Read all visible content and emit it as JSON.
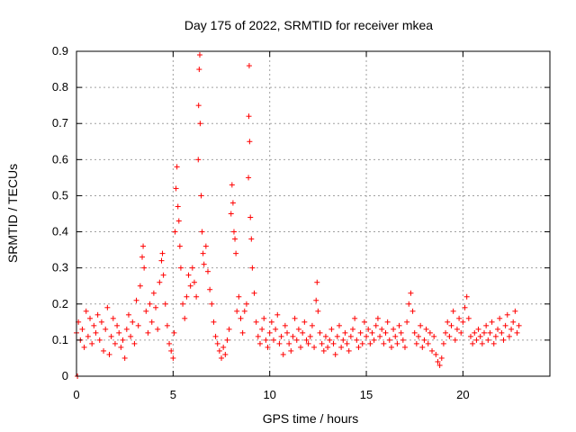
{
  "chart_data": {
    "type": "scatter",
    "title": "Day 175 of 2022, SRMTID for receiver mkea",
    "xlabel": "GPS time / hours",
    "ylabel": "SRMTID / TECUs",
    "xlim": [
      0,
      24.5
    ],
    "ylim": [
      0,
      0.9
    ],
    "xticks": [
      0,
      5,
      10,
      15,
      20
    ],
    "yticks": [
      0,
      0.1,
      0.2,
      0.3,
      0.4,
      0.5,
      0.6,
      0.7,
      0.8,
      0.9
    ],
    "grid": true,
    "marker": "+",
    "color": "#ff0000",
    "series": [
      {
        "name": "mkea",
        "points": [
          [
            0.0,
            0.12
          ],
          [
            0.05,
            0.0
          ],
          [
            0.1,
            0.15
          ],
          [
            0.2,
            0.1
          ],
          [
            0.3,
            0.13
          ],
          [
            0.4,
            0.08
          ],
          [
            0.5,
            0.18
          ],
          [
            0.6,
            0.11
          ],
          [
            0.7,
            0.16
          ],
          [
            0.8,
            0.09
          ],
          [
            0.9,
            0.14
          ],
          [
            1.0,
            0.12
          ],
          [
            1.1,
            0.17
          ],
          [
            1.2,
            0.1
          ],
          [
            1.3,
            0.15
          ],
          [
            1.4,
            0.07
          ],
          [
            1.5,
            0.13
          ],
          [
            1.6,
            0.19
          ],
          [
            1.7,
            0.06
          ],
          [
            1.8,
            0.11
          ],
          [
            1.9,
            0.16
          ],
          [
            2.0,
            0.09
          ],
          [
            2.1,
            0.14
          ],
          [
            2.2,
            0.12
          ],
          [
            2.3,
            0.08
          ],
          [
            2.4,
            0.1
          ],
          [
            2.5,
            0.05
          ],
          [
            2.6,
            0.13
          ],
          [
            2.7,
            0.17
          ],
          [
            2.8,
            0.11
          ],
          [
            2.9,
            0.15
          ],
          [
            3.0,
            0.09
          ],
          [
            3.1,
            0.21
          ],
          [
            3.2,
            0.14
          ],
          [
            3.3,
            0.25
          ],
          [
            3.4,
            0.33
          ],
          [
            3.45,
            0.36
          ],
          [
            3.5,
            0.3
          ],
          [
            3.6,
            0.18
          ],
          [
            3.7,
            0.12
          ],
          [
            3.8,
            0.2
          ],
          [
            3.9,
            0.15
          ],
          [
            4.0,
            0.23
          ],
          [
            4.1,
            0.19
          ],
          [
            4.2,
            0.13
          ],
          [
            4.3,
            0.26
          ],
          [
            4.4,
            0.32
          ],
          [
            4.45,
            0.34
          ],
          [
            4.5,
            0.28
          ],
          [
            4.6,
            0.2
          ],
          [
            4.7,
            0.14
          ],
          [
            4.8,
            0.09
          ],
          [
            4.9,
            0.07
          ],
          [
            5.0,
            0.05
          ],
          [
            5.05,
            0.12
          ],
          [
            5.1,
            0.4
          ],
          [
            5.15,
            0.52
          ],
          [
            5.2,
            0.58
          ],
          [
            5.25,
            0.47
          ],
          [
            5.3,
            0.43
          ],
          [
            5.35,
            0.36
          ],
          [
            5.4,
            0.3
          ],
          [
            5.5,
            0.2
          ],
          [
            5.6,
            0.16
          ],
          [
            5.7,
            0.22
          ],
          [
            5.8,
            0.28
          ],
          [
            5.9,
            0.25
          ],
          [
            6.0,
            0.3
          ],
          [
            6.1,
            0.26
          ],
          [
            6.2,
            0.22
          ],
          [
            6.3,
            0.6
          ],
          [
            6.32,
            0.75
          ],
          [
            6.35,
            0.85
          ],
          [
            6.38,
            0.89
          ],
          [
            6.4,
            0.7
          ],
          [
            6.45,
            0.5
          ],
          [
            6.5,
            0.4
          ],
          [
            6.55,
            0.34
          ],
          [
            6.6,
            0.31
          ],
          [
            6.7,
            0.36
          ],
          [
            6.8,
            0.29
          ],
          [
            6.9,
            0.24
          ],
          [
            7.0,
            0.2
          ],
          [
            7.1,
            0.15
          ],
          [
            7.2,
            0.11
          ],
          [
            7.3,
            0.09
          ],
          [
            7.4,
            0.07
          ],
          [
            7.5,
            0.05
          ],
          [
            7.6,
            0.08
          ],
          [
            7.7,
            0.06
          ],
          [
            7.8,
            0.1
          ],
          [
            7.9,
            0.13
          ],
          [
            8.0,
            0.45
          ],
          [
            8.05,
            0.53
          ],
          [
            8.1,
            0.48
          ],
          [
            8.15,
            0.4
          ],
          [
            8.2,
            0.38
          ],
          [
            8.25,
            0.34
          ],
          [
            8.3,
            0.18
          ],
          [
            8.4,
            0.22
          ],
          [
            8.5,
            0.16
          ],
          [
            8.6,
            0.12
          ],
          [
            8.7,
            0.18
          ],
          [
            8.8,
            0.2
          ],
          [
            8.9,
            0.55
          ],
          [
            8.92,
            0.72
          ],
          [
            8.94,
            0.86
          ],
          [
            8.96,
            0.65
          ],
          [
            9.0,
            0.44
          ],
          [
            9.05,
            0.38
          ],
          [
            9.1,
            0.3
          ],
          [
            9.2,
            0.23
          ],
          [
            9.3,
            0.15
          ],
          [
            9.4,
            0.11
          ],
          [
            9.5,
            0.09
          ],
          [
            9.6,
            0.13
          ],
          [
            9.7,
            0.16
          ],
          [
            9.8,
            0.1
          ],
          [
            9.9,
            0.08
          ],
          [
            10.0,
            0.12
          ],
          [
            10.1,
            0.15
          ],
          [
            10.2,
            0.1
          ],
          [
            10.3,
            0.13
          ],
          [
            10.4,
            0.17
          ],
          [
            10.5,
            0.09
          ],
          [
            10.6,
            0.11
          ],
          [
            10.7,
            0.06
          ],
          [
            10.8,
            0.14
          ],
          [
            10.9,
            0.12
          ],
          [
            11.0,
            0.09
          ],
          [
            11.1,
            0.07
          ],
          [
            11.2,
            0.11
          ],
          [
            11.3,
            0.16
          ],
          [
            11.4,
            0.1
          ],
          [
            11.5,
            0.13
          ],
          [
            11.6,
            0.08
          ],
          [
            11.7,
            0.12
          ],
          [
            11.8,
            0.15
          ],
          [
            11.9,
            0.1
          ],
          [
            12.0,
            0.09
          ],
          [
            12.1,
            0.11
          ],
          [
            12.2,
            0.14
          ],
          [
            12.3,
            0.08
          ],
          [
            12.4,
            0.21
          ],
          [
            12.45,
            0.26
          ],
          [
            12.5,
            0.18
          ],
          [
            12.6,
            0.12
          ],
          [
            12.7,
            0.09
          ],
          [
            12.8,
            0.07
          ],
          [
            12.9,
            0.11
          ],
          [
            13.0,
            0.08
          ],
          [
            13.1,
            0.1
          ],
          [
            13.2,
            0.13
          ],
          [
            13.3,
            0.09
          ],
          [
            13.4,
            0.06
          ],
          [
            13.5,
            0.11
          ],
          [
            13.6,
            0.14
          ],
          [
            13.7,
            0.08
          ],
          [
            13.8,
            0.1
          ],
          [
            13.9,
            0.12
          ],
          [
            14.0,
            0.09
          ],
          [
            14.1,
            0.07
          ],
          [
            14.2,
            0.11
          ],
          [
            14.3,
            0.13
          ],
          [
            14.4,
            0.16
          ],
          [
            14.5,
            0.1
          ],
          [
            14.6,
            0.08
          ],
          [
            14.7,
            0.12
          ],
          [
            14.8,
            0.09
          ],
          [
            14.9,
            0.15
          ],
          [
            15.0,
            0.11
          ],
          [
            15.1,
            0.13
          ],
          [
            15.2,
            0.09
          ],
          [
            15.3,
            0.12
          ],
          [
            15.4,
            0.1
          ],
          [
            15.5,
            0.14
          ],
          [
            15.6,
            0.16
          ],
          [
            15.7,
            0.11
          ],
          [
            15.8,
            0.13
          ],
          [
            15.9,
            0.09
          ],
          [
            16.0,
            0.12
          ],
          [
            16.1,
            0.15
          ],
          [
            16.2,
            0.1
          ],
          [
            16.3,
            0.08
          ],
          [
            16.4,
            0.13
          ],
          [
            16.5,
            0.11
          ],
          [
            16.6,
            0.09
          ],
          [
            16.7,
            0.14
          ],
          [
            16.8,
            0.12
          ],
          [
            16.9,
            0.1
          ],
          [
            17.0,
            0.08
          ],
          [
            17.1,
            0.15
          ],
          [
            17.2,
            0.2
          ],
          [
            17.3,
            0.23
          ],
          [
            17.4,
            0.18
          ],
          [
            17.5,
            0.12
          ],
          [
            17.6,
            0.09
          ],
          [
            17.7,
            0.11
          ],
          [
            17.8,
            0.14
          ],
          [
            17.9,
            0.08
          ],
          [
            18.0,
            0.1
          ],
          [
            18.1,
            0.13
          ],
          [
            18.2,
            0.09
          ],
          [
            18.3,
            0.12
          ],
          [
            18.4,
            0.07
          ],
          [
            18.5,
            0.11
          ],
          [
            18.6,
            0.06
          ],
          [
            18.7,
            0.04
          ],
          [
            18.8,
            0.03
          ],
          [
            18.9,
            0.05
          ],
          [
            19.0,
            0.09
          ],
          [
            19.1,
            0.12
          ],
          [
            19.2,
            0.15
          ],
          [
            19.3,
            0.11
          ],
          [
            19.4,
            0.14
          ],
          [
            19.5,
            0.18
          ],
          [
            19.6,
            0.1
          ],
          [
            19.7,
            0.13
          ],
          [
            19.8,
            0.16
          ],
          [
            19.9,
            0.12
          ],
          [
            20.0,
            0.15
          ],
          [
            20.1,
            0.19
          ],
          [
            20.2,
            0.22
          ],
          [
            20.3,
            0.16
          ],
          [
            20.4,
            0.11
          ],
          [
            20.5,
            0.09
          ],
          [
            20.6,
            0.12
          ],
          [
            20.7,
            0.1
          ],
          [
            20.8,
            0.13
          ],
          [
            20.9,
            0.11
          ],
          [
            21.0,
            0.09
          ],
          [
            21.1,
            0.12
          ],
          [
            21.2,
            0.14
          ],
          [
            21.3,
            0.1
          ],
          [
            21.4,
            0.12
          ],
          [
            21.5,
            0.15
          ],
          [
            21.6,
            0.09
          ],
          [
            21.7,
            0.11
          ],
          [
            21.8,
            0.13
          ],
          [
            21.9,
            0.16
          ],
          [
            22.0,
            0.12
          ],
          [
            22.1,
            0.1
          ],
          [
            22.2,
            0.14
          ],
          [
            22.3,
            0.17
          ],
          [
            22.4,
            0.11
          ],
          [
            22.5,
            0.13
          ],
          [
            22.6,
            0.15
          ],
          [
            22.7,
            0.18
          ],
          [
            22.8,
            0.12
          ],
          [
            22.9,
            0.14
          ]
        ]
      }
    ]
  }
}
